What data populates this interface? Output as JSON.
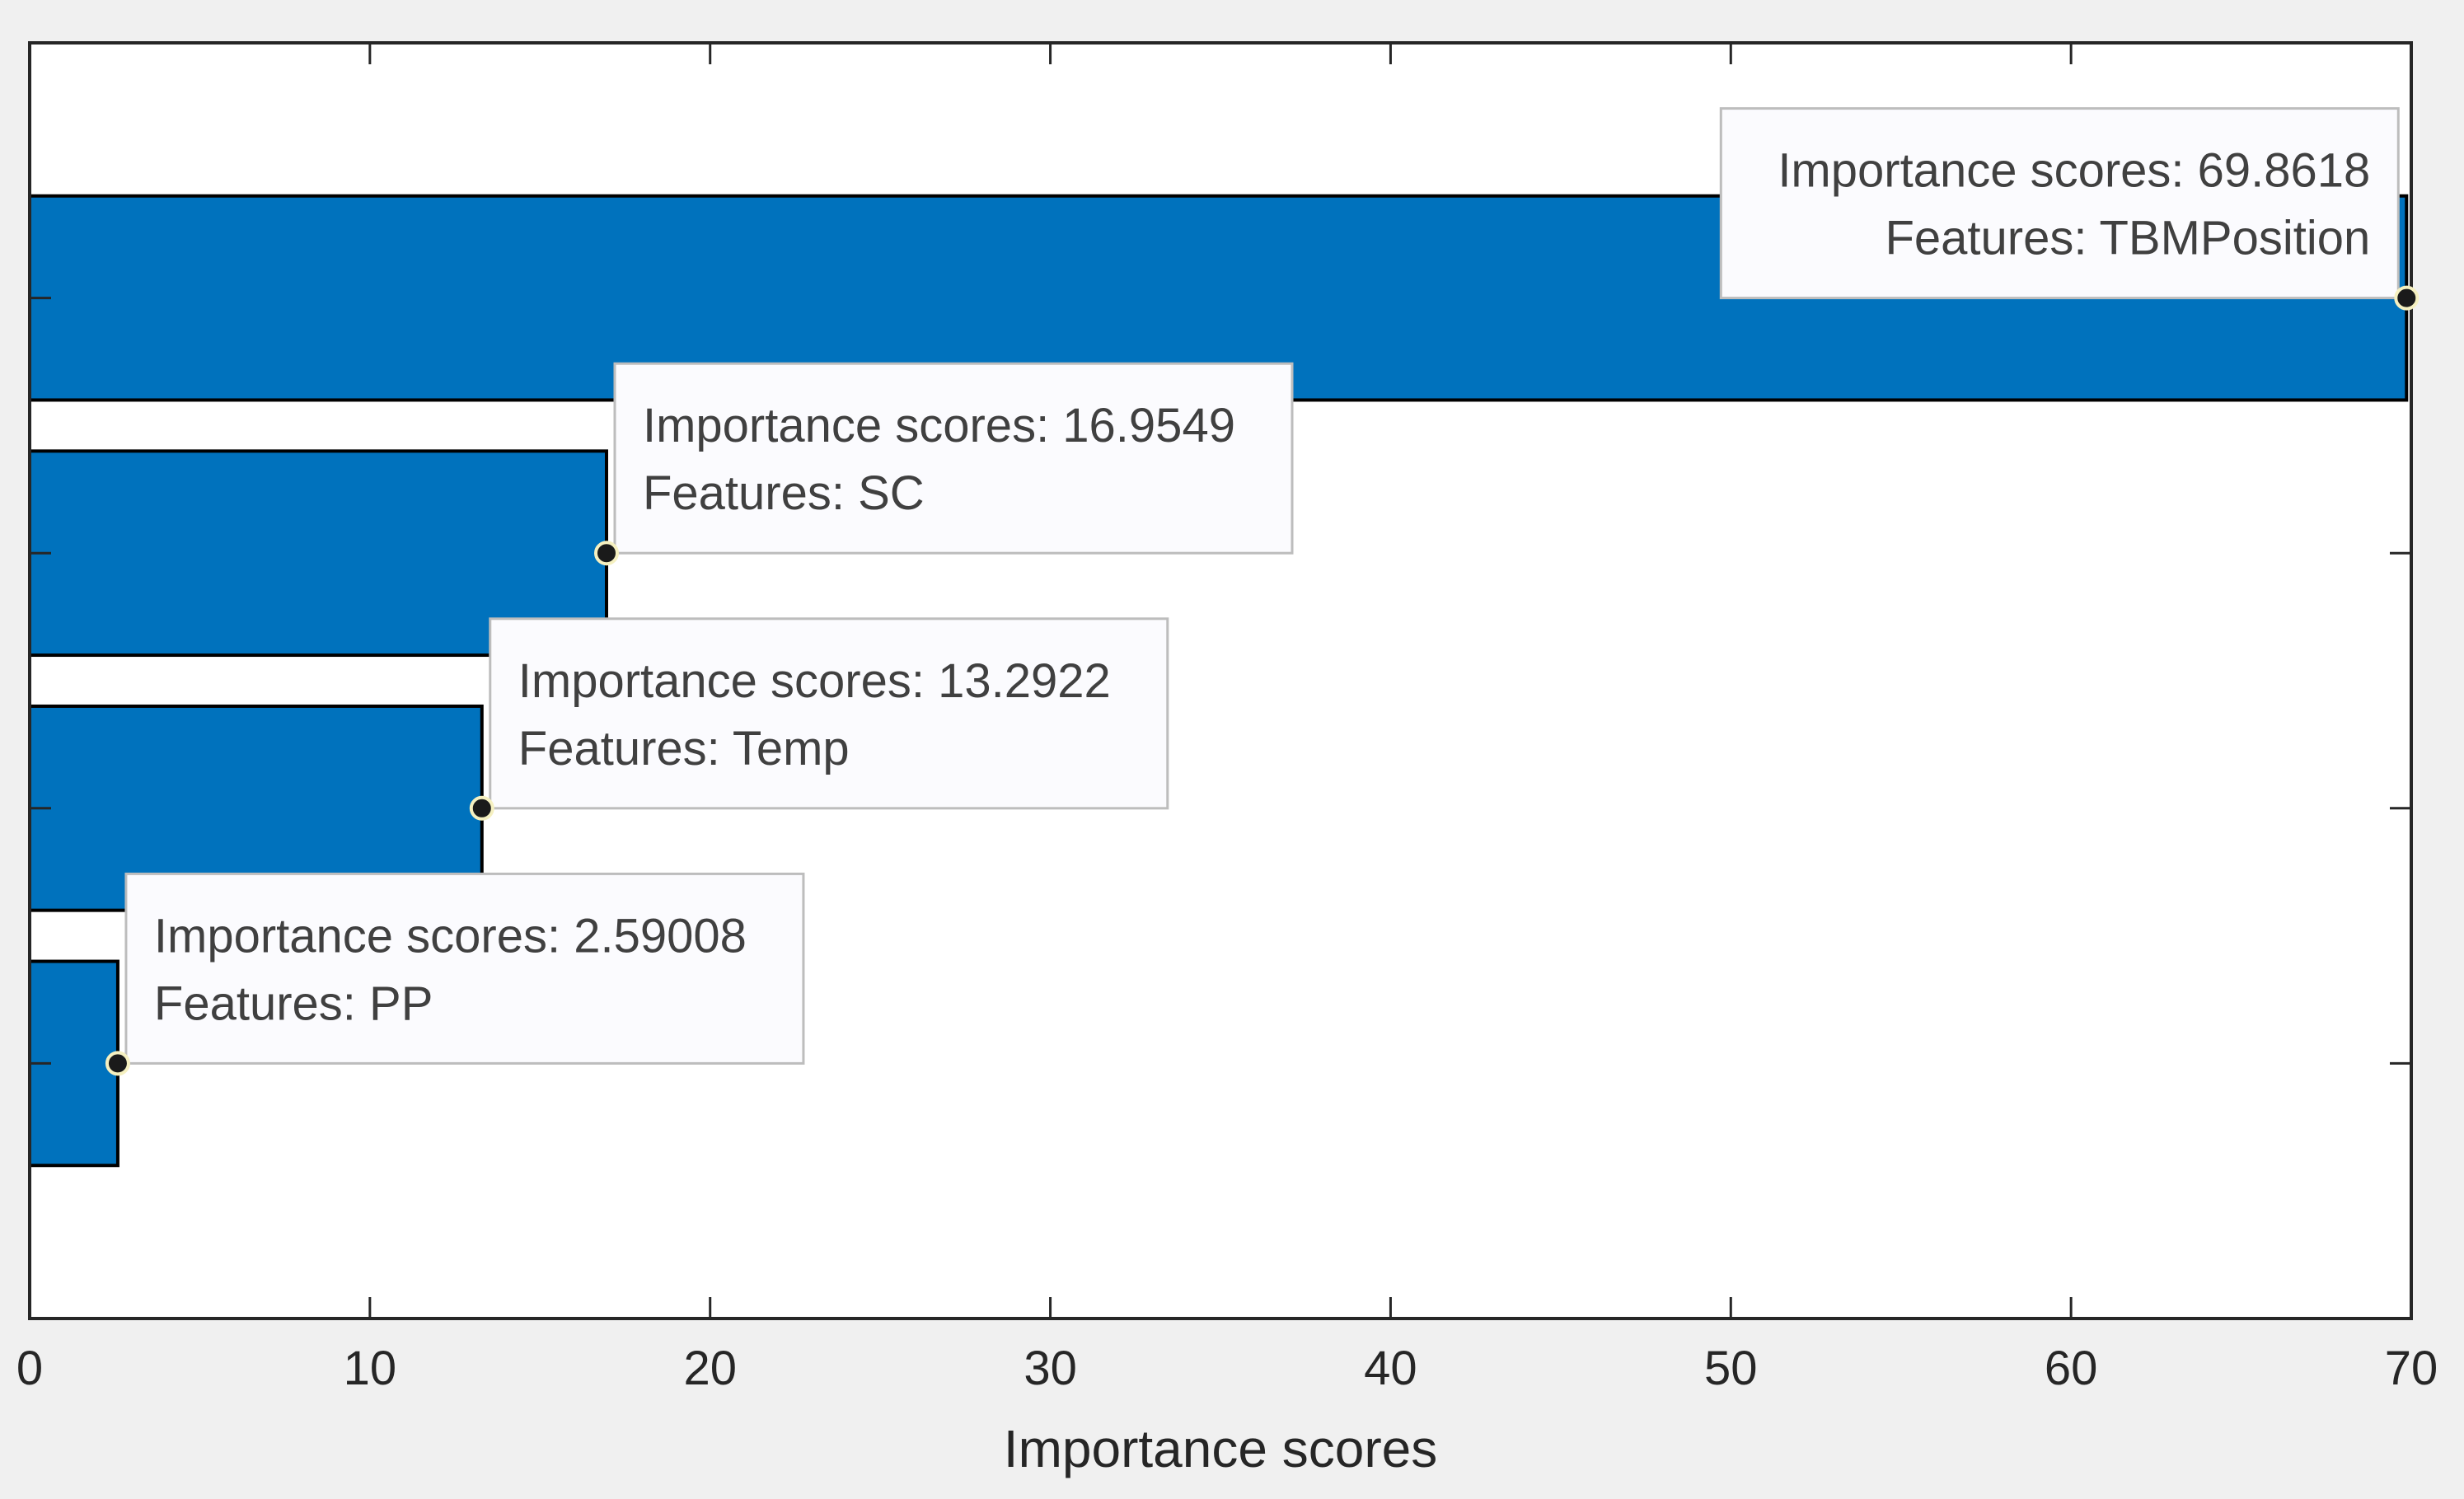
{
  "chart_data": {
    "type": "bar",
    "orientation": "horizontal",
    "title": "",
    "xlabel": "Importance scores",
    "ylabel": "",
    "xlim": [
      0,
      70
    ],
    "xticks": [
      0,
      10,
      20,
      30,
      40,
      50,
      60,
      70
    ],
    "grid": false,
    "legend": "none",
    "bar_color": "#0072BD",
    "categories": [
      "TBMPosition",
      "SC",
      "Temp",
      "PP"
    ],
    "values": [
      69.8618,
      16.9549,
      13.2922,
      2.59008
    ],
    "datatips": [
      {
        "line1": "Importance scores: 69.8618",
        "line2": "Features: TBMPosition"
      },
      {
        "line1": "Importance scores: 16.9549",
        "line2": "Features: SC"
      },
      {
        "line1": "Importance scores: 13.2922",
        "line2": "Features: Temp"
      },
      {
        "line1": "Importance scores: 2.59008",
        "line2": "Features: PP"
      }
    ]
  }
}
